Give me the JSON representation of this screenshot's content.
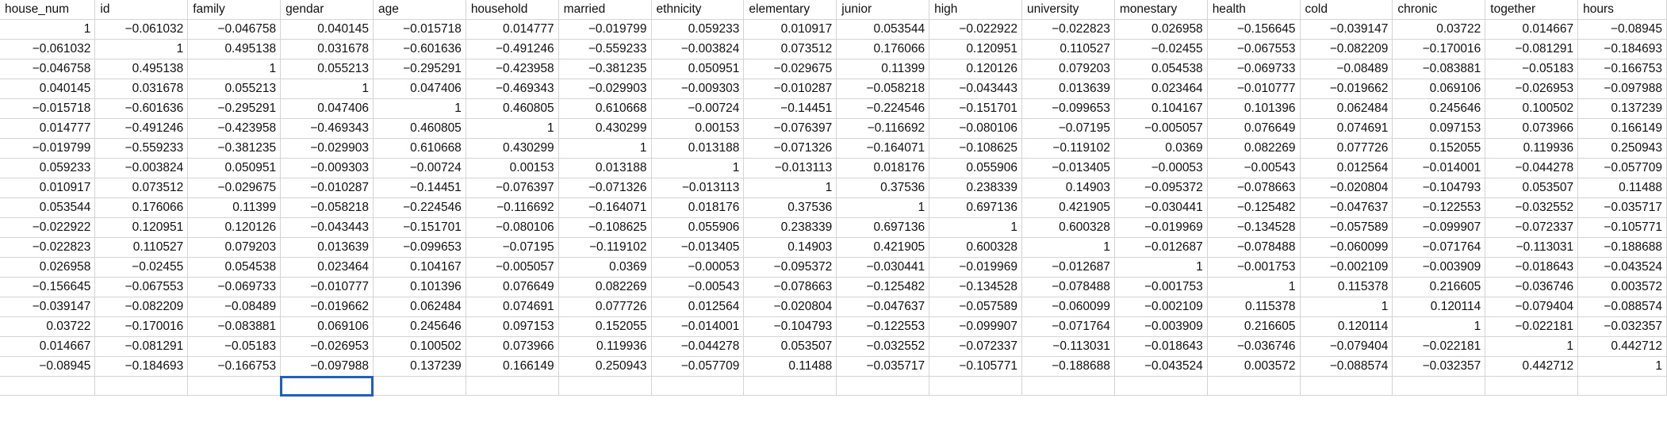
{
  "columns": [
    "house_num",
    "id",
    "family",
    "gendar",
    "age",
    "household",
    "married",
    "ethnicity",
    "elementary",
    "junior",
    "high",
    "university",
    "monestary",
    "health",
    "cold",
    "chronic",
    "together",
    "hours"
  ],
  "rows": [
    [
      "1",
      "−0.061032",
      "−0.046758",
      "0.040145",
      "−0.015718",
      "0.014777",
      "−0.019799",
      "0.059233",
      "0.010917",
      "0.053544",
      "−0.022922",
      "−0.022823",
      "0.026958",
      "−0.156645",
      "−0.039147",
      "0.03722",
      "0.014667",
      "−0.08945"
    ],
    [
      "−0.061032",
      "1",
      "0.495138",
      "0.031678",
      "−0.601636",
      "−0.491246",
      "−0.559233",
      "−0.003824",
      "0.073512",
      "0.176066",
      "0.120951",
      "0.110527",
      "−0.02455",
      "−0.067553",
      "−0.082209",
      "−0.170016",
      "−0.081291",
      "−0.184693"
    ],
    [
      "−0.046758",
      "0.495138",
      "1",
      "0.055213",
      "−0.295291",
      "−0.423958",
      "−0.381235",
      "0.050951",
      "−0.029675",
      "0.11399",
      "0.120126",
      "0.079203",
      "0.054538",
      "−0.069733",
      "−0.08489",
      "−0.083881",
      "−0.05183",
      "−0.166753"
    ],
    [
      "0.040145",
      "0.031678",
      "0.055213",
      "1",
      "0.047406",
      "−0.469343",
      "−0.029903",
      "−0.009303",
      "−0.010287",
      "−0.058218",
      "−0.043443",
      "0.013639",
      "0.023464",
      "−0.010777",
      "−0.019662",
      "0.069106",
      "−0.026953",
      "−0.097988"
    ],
    [
      "−0.015718",
      "−0.601636",
      "−0.295291",
      "0.047406",
      "1",
      "0.460805",
      "0.610668",
      "−0.00724",
      "−0.14451",
      "−0.224546",
      "−0.151701",
      "−0.099653",
      "0.104167",
      "0.101396",
      "0.062484",
      "0.245646",
      "0.100502",
      "0.137239"
    ],
    [
      "0.014777",
      "−0.491246",
      "−0.423958",
      "−0.469343",
      "0.460805",
      "1",
      "0.430299",
      "0.00153",
      "−0.076397",
      "−0.116692",
      "−0.080106",
      "−0.07195",
      "−0.005057",
      "0.076649",
      "0.074691",
      "0.097153",
      "0.073966",
      "0.166149"
    ],
    [
      "−0.019799",
      "−0.559233",
      "−0.381235",
      "−0.029903",
      "0.610668",
      "0.430299",
      "1",
      "0.013188",
      "−0.071326",
      "−0.164071",
      "−0.108625",
      "−0.119102",
      "0.0369",
      "0.082269",
      "0.077726",
      "0.152055",
      "0.119936",
      "0.250943"
    ],
    [
      "0.059233",
      "−0.003824",
      "0.050951",
      "−0.009303",
      "−0.00724",
      "0.00153",
      "0.013188",
      "1",
      "−0.013113",
      "0.018176",
      "0.055906",
      "−0.013405",
      "−0.00053",
      "−0.00543",
      "0.012564",
      "−0.014001",
      "−0.044278",
      "−0.057709"
    ],
    [
      "0.010917",
      "0.073512",
      "−0.029675",
      "−0.010287",
      "−0.14451",
      "−0.076397",
      "−0.071326",
      "−0.013113",
      "1",
      "0.37536",
      "0.238339",
      "0.14903",
      "−0.095372",
      "−0.078663",
      "−0.020804",
      "−0.104793",
      "0.053507",
      "0.11488"
    ],
    [
      "0.053544",
      "0.176066",
      "0.11399",
      "−0.058218",
      "−0.224546",
      "−0.116692",
      "−0.164071",
      "0.018176",
      "0.37536",
      "1",
      "0.697136",
      "0.421905",
      "−0.030441",
      "−0.125482",
      "−0.047637",
      "−0.122553",
      "−0.032552",
      "−0.035717"
    ],
    [
      "−0.022922",
      "0.120951",
      "0.120126",
      "−0.043443",
      "−0.151701",
      "−0.080106",
      "−0.108625",
      "0.055906",
      "0.238339",
      "0.697136",
      "1",
      "0.600328",
      "−0.019969",
      "−0.134528",
      "−0.057589",
      "−0.099907",
      "−0.072337",
      "−0.105771"
    ],
    [
      "−0.022823",
      "0.110527",
      "0.079203",
      "0.013639",
      "−0.099653",
      "−0.07195",
      "−0.119102",
      "−0.013405",
      "0.14903",
      "0.421905",
      "0.600328",
      "1",
      "−0.012687",
      "−0.078488",
      "−0.060099",
      "−0.071764",
      "−0.113031",
      "−0.188688"
    ],
    [
      "0.026958",
      "−0.02455",
      "0.054538",
      "0.023464",
      "0.104167",
      "−0.005057",
      "0.0369",
      "−0.00053",
      "−0.095372",
      "−0.030441",
      "−0.019969",
      "−0.012687",
      "1",
      "−0.001753",
      "−0.002109",
      "−0.003909",
      "−0.018643",
      "−0.043524"
    ],
    [
      "−0.156645",
      "−0.067553",
      "−0.069733",
      "−0.010777",
      "0.101396",
      "0.076649",
      "0.082269",
      "−0.00543",
      "−0.078663",
      "−0.125482",
      "−0.134528",
      "−0.078488",
      "−0.001753",
      "1",
      "0.115378",
      "0.216605",
      "−0.036746",
      "0.003572"
    ],
    [
      "−0.039147",
      "−0.082209",
      "−0.08489",
      "−0.019662",
      "0.062484",
      "0.074691",
      "0.077726",
      "0.012564",
      "−0.020804",
      "−0.047637",
      "−0.057589",
      "−0.060099",
      "−0.002109",
      "0.115378",
      "1",
      "0.120114",
      "−0.079404",
      "−0.088574"
    ],
    [
      "0.03722",
      "−0.170016",
      "−0.083881",
      "0.069106",
      "0.245646",
      "0.097153",
      "0.152055",
      "−0.014001",
      "−0.104793",
      "−0.122553",
      "−0.099907",
      "−0.071764",
      "−0.003909",
      "0.216605",
      "0.120114",
      "1",
      "−0.022181",
      "−0.032357"
    ],
    [
      "0.014667",
      "−0.081291",
      "−0.05183",
      "−0.026953",
      "0.100502",
      "0.073966",
      "0.119936",
      "−0.044278",
      "0.053507",
      "−0.032552",
      "−0.072337",
      "−0.113031",
      "−0.018643",
      "−0.036746",
      "−0.079404",
      "−0.022181",
      "1",
      "0.442712"
    ],
    [
      "−0.08945",
      "−0.184693",
      "−0.166753",
      "−0.097988",
      "0.137239",
      "0.166149",
      "0.250943",
      "−0.057709",
      "0.11488",
      "−0.035717",
      "−0.105771",
      "−0.188688",
      "−0.043524",
      "0.003572",
      "−0.088574",
      "−0.032357",
      "0.442712",
      "1"
    ]
  ],
  "selection": {
    "row": 19,
    "col": 3
  }
}
